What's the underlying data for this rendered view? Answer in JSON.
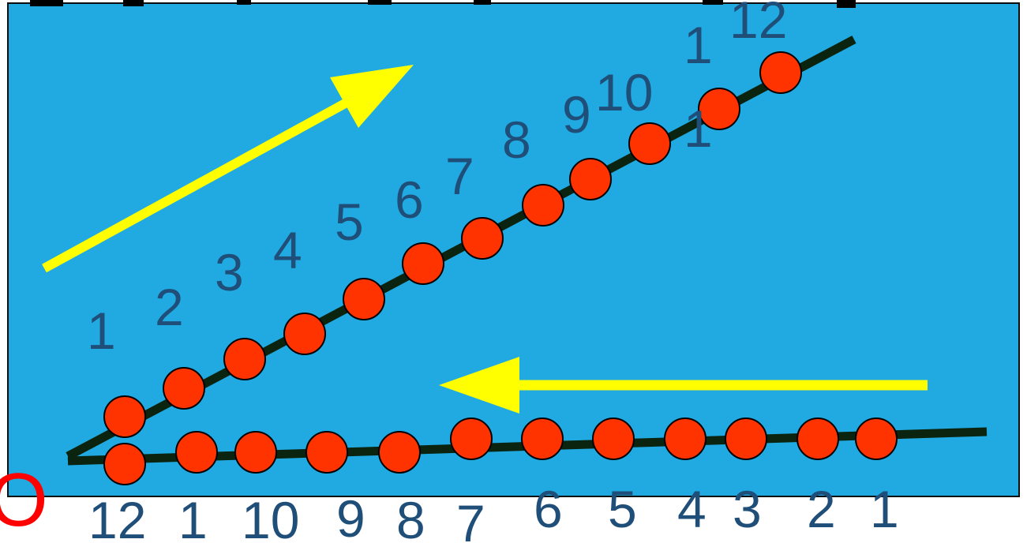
{
  "diagram": {
    "background_color": "#21aae2",
    "dot_color": "#ff3300",
    "line_color": "#0b2410",
    "arrow_color": "#ffff00",
    "origin_label": "O",
    "upper_labels": [
      "1",
      "2",
      "3",
      "4",
      "5",
      "6",
      "7",
      "8",
      "9",
      "10",
      "1",
      "12"
    ],
    "upper_extra_label": "1",
    "lower_labels": [
      "12",
      "1",
      "10",
      "9",
      "8",
      "7",
      "6",
      "5",
      "4",
      "3",
      "2",
      "1"
    ]
  }
}
